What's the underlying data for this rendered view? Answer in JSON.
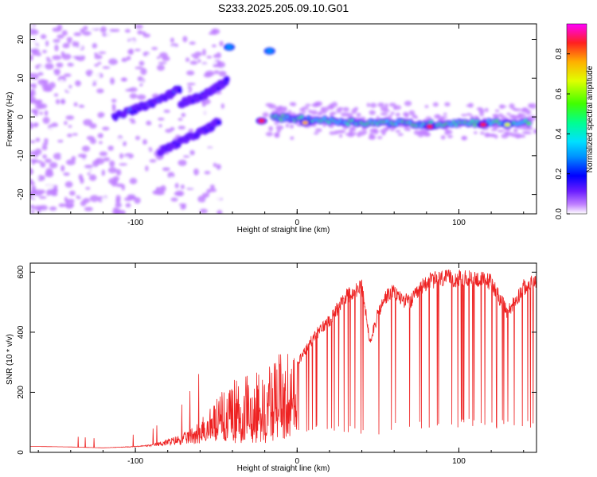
{
  "title": "S233.2025.205.09.10.G01",
  "chart_data": [
    {
      "type": "heatmap",
      "title": "S233.2025.205.09.10.G01",
      "xlabel": "Height of straight line (km)",
      "ylabel": "Frequency (Hz)",
      "xlim": [
        -165,
        148
      ],
      "ylim": [
        -25,
        24
      ],
      "xticks": [
        -100,
        0,
        100
      ],
      "yticks": [
        -20,
        -10,
        0,
        10,
        20
      ],
      "colorbar": {
        "label": "Normalized spectral amplitude",
        "range": [
          0,
          0.95
        ],
        "ticks": [
          0.0,
          0.2,
          0.4,
          0.6,
          0.8
        ]
      },
      "ridges": [
        {
          "name": "upper-diagonal",
          "x": [
            -113,
            -100,
            -90,
            -80,
            -72
          ],
          "y": [
            0,
            2,
            3.5,
            5.5,
            7.5
          ],
          "amplitude": 0.3
        },
        {
          "name": "middle-diagonal",
          "x": [
            -72,
            -65,
            -58,
            -50,
            -43
          ],
          "y": [
            3.5,
            4.5,
            5.5,
            7.5,
            9.5
          ],
          "amplitude": 0.25
        },
        {
          "name": "lower-diagonal",
          "x": [
            -85,
            -75,
            -65,
            -55,
            -48
          ],
          "y": [
            -9,
            -7,
            -5,
            -3,
            -1
          ],
          "amplitude": 0.25
        },
        {
          "name": "flat-band",
          "x": [
            -15,
            0,
            20,
            40,
            60,
            80,
            100,
            120,
            145
          ],
          "y": [
            0,
            -0.5,
            -1,
            -1.5,
            -1.5,
            -2,
            -1.5,
            -1.5,
            -1.5
          ],
          "amplitude": 0.6
        }
      ],
      "hotspots": [
        {
          "x": -22,
          "y": -1,
          "amplitude": 0.9
        },
        {
          "x": 5,
          "y": -1.5,
          "amplitude": 0.8
        },
        {
          "x": 82,
          "y": -2.5,
          "amplitude": 0.9
        },
        {
          "x": 115,
          "y": -2,
          "amplitude": 0.9
        },
        {
          "x": 130,
          "y": -2,
          "amplitude": 0.75
        },
        {
          "x": -17,
          "y": 17,
          "amplitude": 0.35
        },
        {
          "x": -42,
          "y": 18,
          "amplitude": 0.3
        }
      ]
    },
    {
      "type": "line",
      "xlabel": "Height of straight line (km)",
      "ylabel": "SNR (10 * v/v)",
      "xlim": [
        -165,
        148
      ],
      "ylim": [
        0,
        630
      ],
      "xticks": [
        -100,
        0,
        100
      ],
      "yticks": [
        0,
        200,
        400,
        600
      ],
      "color": "#ee2222",
      "envelope_x": [
        -165,
        -140,
        -120,
        -100,
        -90,
        -80,
        -70,
        -60,
        -50,
        -40,
        -30,
        -20,
        -10,
        0,
        10,
        20,
        30,
        40,
        45,
        50,
        55,
        60,
        65,
        70,
        80,
        90,
        100,
        110,
        120,
        130,
        140,
        148
      ],
      "envelope_y": [
        20,
        18,
        15,
        20,
        25,
        40,
        55,
        90,
        150,
        200,
        220,
        230,
        280,
        300,
        390,
        450,
        530,
        560,
        380,
        470,
        530,
        545,
        520,
        510,
        580,
        590,
        590,
        590,
        580,
        475,
        560,
        580
      ],
      "floor_y": [
        20,
        18,
        15,
        18,
        20,
        22,
        25,
        30,
        35,
        30,
        30,
        30,
        40,
        50,
        60,
        70,
        60,
        50,
        45,
        55,
        62,
        68,
        72,
        75,
        80,
        80,
        82,
        82,
        80,
        78,
        75,
        75
      ]
    }
  ]
}
